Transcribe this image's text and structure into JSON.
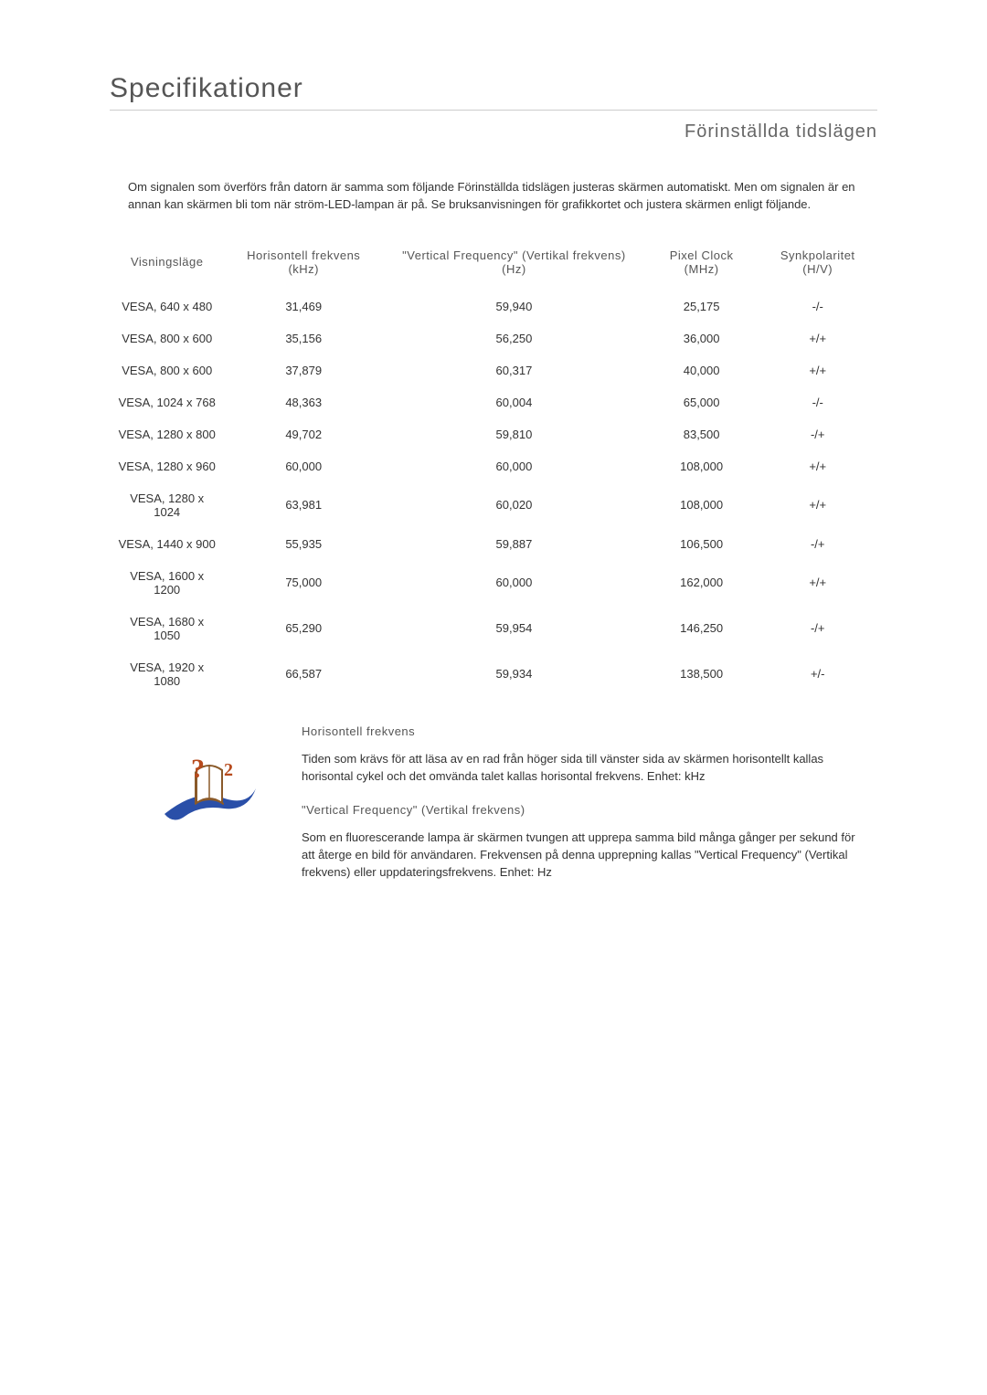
{
  "title": "Specifikationer",
  "subtitle": "Förinställda tidslägen",
  "intro": "Om signalen som överförs från datorn är samma som följande Förinställda tidslägen justeras skärmen automatiskt. Men om signalen är en annan kan skärmen bli tom när ström-LED-lampan är på. Se bruksanvisningen för grafikkortet och justera skärmen enligt följande.",
  "table": {
    "headers": [
      "Visningsläge",
      "Horisontell frekvens (kHz)",
      "\"Vertical Frequency\" (Vertikal frekvens) (Hz)",
      "Pixel Clock (MHz)",
      "Synkpolaritet (H/V)"
    ],
    "rows": [
      [
        "VESA, 640 x 480",
        "31,469",
        "59,940",
        "25,175",
        "-/-"
      ],
      [
        "VESA, 800 x 600",
        "35,156",
        "56,250",
        "36,000",
        "+/+"
      ],
      [
        "VESA, 800 x 600",
        "37,879",
        "60,317",
        "40,000",
        "+/+"
      ],
      [
        "VESA, 1024 x 768",
        "48,363",
        "60,004",
        "65,000",
        "-/-"
      ],
      [
        "VESA, 1280 x 800",
        "49,702",
        "59,810",
        "83,500",
        "-/+"
      ],
      [
        "VESA, 1280 x 960",
        "60,000",
        "60,000",
        "108,000",
        "+/+"
      ],
      [
        "VESA, 1280 x 1024",
        "63,981",
        "60,020",
        "108,000",
        "+/+"
      ],
      [
        "VESA, 1440 x 900",
        "55,935",
        "59,887",
        "106,500",
        "-/+"
      ],
      [
        "VESA, 1600 x 1200",
        "75,000",
        "60,000",
        "162,000",
        "+/+"
      ],
      [
        "VESA, 1680 x 1050",
        "65,290",
        "59,954",
        "146,250",
        "-/+"
      ],
      [
        "VESA, 1920 x 1080",
        "66,587",
        "59,934",
        "138,500",
        "+/-"
      ]
    ]
  },
  "definitions": {
    "horiz_title": "Horisontell frekvens",
    "horiz_text": "Tiden som krävs för att läsa av en rad från höger sida till vänster sida av skärmen horisontellt kallas horisontal cykel och det omvända talet kallas horisontal frekvens. Enhet: kHz",
    "vert_title": "\"Vertical Frequency\" (Vertikal frekvens)",
    "vert_text": "Som en fluorescerande lampa är skärmen tvungen att upprepa samma bild många gånger per sekund för att återge en bild för användaren. Frekvensen på denna upprepning kallas \"Vertical Frequency\" (Vertikal frekvens) eller uppdateringsfrekvens. Enhet: Hz"
  }
}
